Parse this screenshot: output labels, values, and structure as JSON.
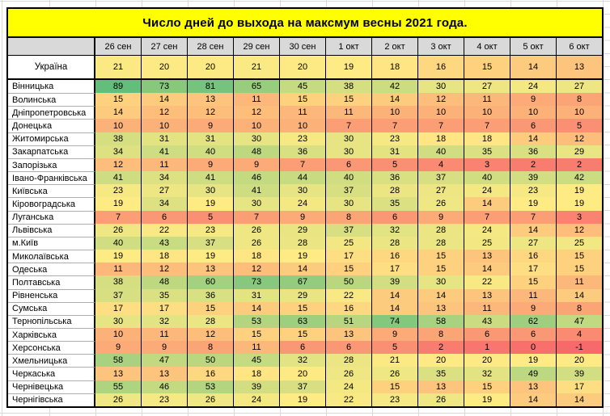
{
  "sheet": {
    "colors": {
      "title_bg": "#FFFF00",
      "header_bg": "#D9D9D9",
      "border": "#000000",
      "gridline": "#D9D9D9",
      "label_separator": "#ADADAD"
    }
  },
  "chart_data": {
    "type": "heatmap",
    "title": "Число дней до выхода на максмум весны 2021 года.",
    "columns": [
      "26 сен",
      "27 сен",
      "28 сен",
      "29 сен",
      "30 сен",
      "1 окт",
      "2 окт",
      "3 окт",
      "4 окт",
      "5 окт",
      "6 окт"
    ],
    "corner_label": "",
    "rows": [
      {
        "label": "Україна",
        "values": [
          21,
          20,
          20,
          21,
          20,
          19,
          18,
          16,
          15,
          14,
          13
        ]
      },
      {
        "label": "Вінницька",
        "values": [
          89,
          73,
          81,
          65,
          45,
          38,
          42,
          30,
          27,
          24,
          27
        ]
      },
      {
        "label": "Волинська",
        "values": [
          15,
          14,
          13,
          11,
          15,
          15,
          14,
          12,
          11,
          9,
          8
        ]
      },
      {
        "label": "Дніпропетровська",
        "values": [
          14,
          12,
          12,
          12,
          11,
          11,
          10,
          10,
          10,
          10,
          10
        ]
      },
      {
        "label": "Донецька",
        "values": [
          10,
          10,
          9,
          10,
          10,
          7,
          7,
          7,
          7,
          6,
          5
        ]
      },
      {
        "label": "Житомирська",
        "values": [
          38,
          31,
          31,
          30,
          23,
          30,
          23,
          18,
          18,
          14,
          12
        ]
      },
      {
        "label": "Закарпатська",
        "values": [
          34,
          41,
          40,
          48,
          36,
          30,
          31,
          40,
          35,
          36,
          29
        ]
      },
      {
        "label": "Запорізька",
        "values": [
          12,
          11,
          9,
          9,
          7,
          6,
          5,
          4,
          3,
          2,
          2
        ]
      },
      {
        "label": "Івано-Франківська",
        "values": [
          41,
          34,
          41,
          46,
          44,
          40,
          36,
          37,
          40,
          39,
          42
        ]
      },
      {
        "label": "Київська",
        "values": [
          23,
          27,
          30,
          41,
          30,
          37,
          28,
          27,
          24,
          23,
          19
        ]
      },
      {
        "label": "Кіровоградська",
        "values": [
          19,
          34,
          19,
          30,
          24,
          30,
          35,
          26,
          14,
          19,
          19
        ]
      },
      {
        "label": "Луганська",
        "values": [
          7,
          6,
          5,
          7,
          9,
          8,
          6,
          9,
          7,
          7,
          3
        ]
      },
      {
        "label": "Львівська",
        "values": [
          26,
          22,
          23,
          26,
          29,
          37,
          32,
          28,
          24,
          14,
          12
        ]
      },
      {
        "label": "м.Київ",
        "values": [
          40,
          43,
          37,
          26,
          28,
          25,
          28,
          28,
          25,
          27,
          25
        ]
      },
      {
        "label": "Миколаївська",
        "values": [
          19,
          18,
          19,
          18,
          19,
          17,
          16,
          15,
          13,
          16,
          15
        ]
      },
      {
        "label": "Одеська",
        "values": [
          11,
          12,
          13,
          12,
          14,
          15,
          17,
          15,
          14,
          17,
          15
        ]
      },
      {
        "label": "Полтавська",
        "values": [
          38,
          48,
          60,
          73,
          67,
          50,
          39,
          30,
          22,
          15,
          11
        ]
      },
      {
        "label": "Рівненська",
        "values": [
          37,
          35,
          36,
          31,
          29,
          22,
          14,
          14,
          13,
          11,
          14
        ]
      },
      {
        "label": "Сумська",
        "values": [
          17,
          17,
          15,
          14,
          15,
          16,
          14,
          13,
          11,
          9,
          8
        ]
      },
      {
        "label": "Тернопільська",
        "values": [
          30,
          32,
          28,
          53,
          63,
          51,
          74,
          58,
          43,
          62,
          47
        ]
      },
      {
        "label": "Харківська",
        "values": [
          10,
          11,
          12,
          15,
          15,
          13,
          9,
          8,
          6,
          6,
          4
        ]
      },
      {
        "label": "Херсонська",
        "values": [
          9,
          9,
          8,
          11,
          6,
          6,
          5,
          2,
          1,
          0,
          -1
        ]
      },
      {
        "label": "Хмельницька",
        "values": [
          58,
          47,
          50,
          45,
          32,
          28,
          21,
          20,
          20,
          19,
          20
        ]
      },
      {
        "label": "Черкаська",
        "values": [
          13,
          13,
          16,
          18,
          20,
          26,
          26,
          35,
          32,
          49,
          39
        ]
      },
      {
        "label": "Чернівецька",
        "values": [
          55,
          46,
          53,
          39,
          37,
          24,
          15,
          13,
          15,
          13,
          17
        ]
      },
      {
        "label": "Чернігівська",
        "values": [
          26,
          23,
          26,
          24,
          19,
          22,
          23,
          26,
          19,
          14,
          14
        ]
      }
    ],
    "color_scale": {
      "style": "excel-3-color-red-yellow-green",
      "min_color": "#F8696B",
      "mid_color": "#FFEB84",
      "max_color": "#63BE7B",
      "mid_at": "50th-percentile",
      "observed_min": -1,
      "observed_mid": 20,
      "observed_max": 89
    },
    "legend": "none",
    "grid": "excel-sheet-background"
  }
}
